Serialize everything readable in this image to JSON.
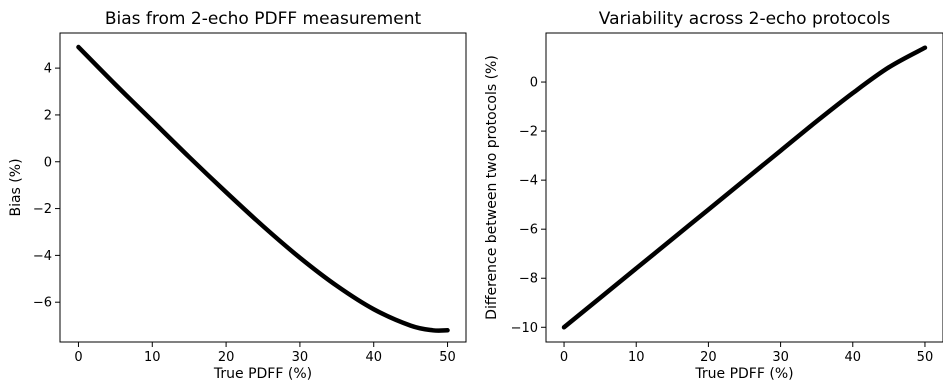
{
  "chart_data": [
    {
      "type": "line",
      "title": "Bias from 2-echo PDFF measurement",
      "xlabel": "True PDFF (%)",
      "ylabel": "Bias (%)",
      "xlim": [
        -2.5,
        52.5
      ],
      "ylim": [
        -7.7,
        5.5
      ],
      "xticks": [
        0,
        10,
        20,
        30,
        40,
        50
      ],
      "yticks": [
        -6,
        -4,
        -2,
        0,
        2,
        4
      ],
      "xtick_labels": [
        "0",
        "10",
        "20",
        "30",
        "40",
        "50"
      ],
      "ytick_labels": [
        "−6",
        "−4",
        "−2",
        "0",
        "2",
        "4"
      ],
      "grid": false,
      "series": [
        {
          "color": "#000000",
          "x": [
            0,
            5,
            10,
            15,
            20,
            25,
            30,
            35,
            40,
            45,
            48,
            50
          ],
          "y": [
            4.9,
            3.3,
            1.75,
            0.2,
            -1.3,
            -2.75,
            -4.1,
            -5.3,
            -6.3,
            -7.0,
            -7.2,
            -7.2
          ]
        }
      ]
    },
    {
      "type": "line",
      "title": "Variability across 2-echo protocols",
      "xlabel": "True PDFF (%)",
      "ylabel": "Difference between two protocols (%)",
      "xlim": [
        -2.5,
        52.5
      ],
      "ylim": [
        -10.6,
        2.0
      ],
      "xticks": [
        0,
        10,
        20,
        30,
        40,
        50
      ],
      "yticks": [
        -10,
        -8,
        -6,
        -4,
        -2,
        0
      ],
      "xtick_labels": [
        "0",
        "10",
        "20",
        "30",
        "40",
        "50"
      ],
      "ytick_labels": [
        "−10",
        "−8",
        "−6",
        "−4",
        "−2",
        "0"
      ],
      "grid": false,
      "series": [
        {
          "color": "#000000",
          "x": [
            0,
            5,
            10,
            15,
            20,
            25,
            30,
            35,
            40,
            45,
            50
          ],
          "y": [
            -10.0,
            -8.8,
            -7.6,
            -6.4,
            -5.2,
            -4.0,
            -2.8,
            -1.6,
            -0.45,
            0.6,
            1.4
          ]
        }
      ]
    }
  ]
}
